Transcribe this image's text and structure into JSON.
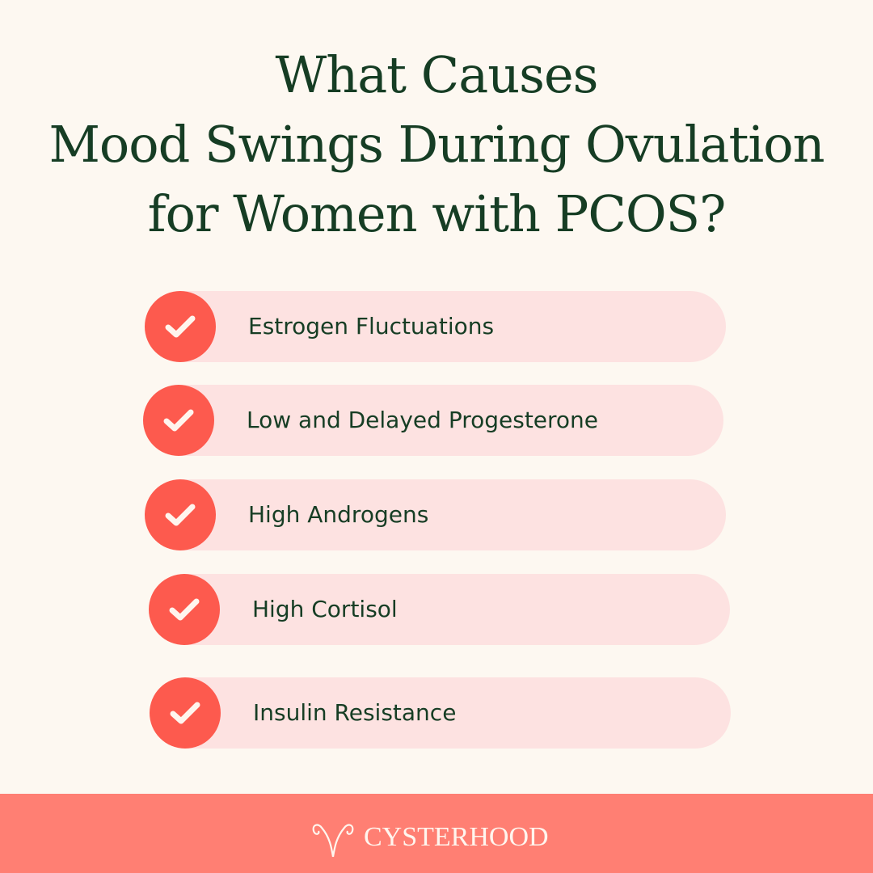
{
  "title": {
    "lines": [
      "What Causes",
      "Mood Swings During Ovulation",
      "for Women with PCOS?"
    ]
  },
  "items": [
    {
      "label": "Estrogen Fluctuations",
      "icon": "check-icon"
    },
    {
      "label": "Low and Delayed Progesterone",
      "icon": "check-icon"
    },
    {
      "label": "High Androgens",
      "icon": "check-icon"
    },
    {
      "label": "High Cortisol",
      "icon": "check-icon"
    },
    {
      "label": "Insulin Resistance",
      "icon": "check-icon"
    }
  ],
  "footer": {
    "brand": "CYSTERHOOD"
  },
  "colors": {
    "background": "#fdf8f1",
    "title": "#163d24",
    "pill": "#fde2e1",
    "check_circle": "#fd5a4e",
    "footer": "#ff7f73"
  }
}
